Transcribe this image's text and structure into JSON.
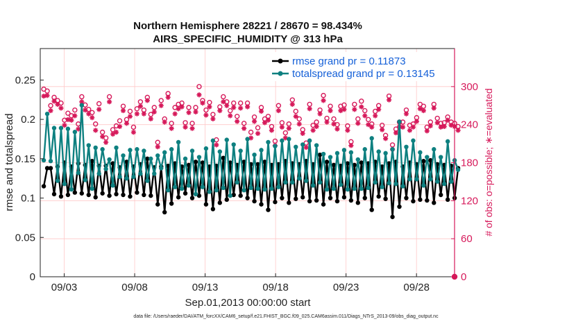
{
  "chart_data": {
    "type": "line",
    "title": "Northern Hemisphere 28221 / 28670 = 98.434%",
    "subtitle": "AIRS_SPECIFIC_HUMIDITY @ 313 hPa",
    "xlabel": "Sep.01,2013 00:00:00 start",
    "ylabel": "rmse and totalspread",
    "ylabel_right": "# of obs: o=possible; ∗=evaluated",
    "footnote": "data file: /Users/raeder/DAI/ATM_forcXX/CAM6_setup/f.e21.FHIST_BGC.f09_025.CAM6assim.011/Diags_NTrS_2013-09/obs_diag_output.nc",
    "xlim": [
      1.3,
      30.7
    ],
    "ylim": [
      0,
      0.29
    ],
    "ylim_right": [
      0,
      360
    ],
    "x_ticks": [
      3,
      8,
      13,
      18,
      23,
      28
    ],
    "x_tick_labels": [
      "09/03",
      "09/08",
      "09/13",
      "09/18",
      "09/23",
      "09/28"
    ],
    "y_ticks": [
      0,
      0.05,
      0.1,
      0.15,
      0.2,
      0.25
    ],
    "y_tick_labels": [
      "0",
      "0.05",
      "0.1",
      "0.15",
      "0.2",
      "0.25"
    ],
    "y_right_ticks": [
      0,
      60,
      120,
      180,
      240,
      300
    ],
    "y_right_tick_labels": [
      "0",
      "60",
      "120",
      "180",
      "240",
      "300"
    ],
    "grid": true,
    "legend_position": "top-right",
    "colors": {
      "rmse": "#000000",
      "spread": "#0e8080",
      "obs": "#d6195a",
      "grid": "#ffc8c8"
    },
    "series": [
      {
        "name": "rmse grand pr = 0.11873",
        "axis": "left",
        "color": "#000000",
        "values": [
          0.115,
          0.138,
          0.138,
          0.105,
          0.14,
          0.102,
          0.145,
          0.104,
          0.14,
          0.107,
          0.144,
          0.106,
          0.142,
          0.104,
          0.147,
          0.101,
          0.141,
          0.106,
          0.141,
          0.103,
          0.144,
          0.105,
          0.139,
          0.104,
          0.146,
          0.102,
          0.14,
          0.107,
          0.143,
          0.104,
          0.15,
          0.103,
          0.139,
          0.092,
          0.14,
          0.082,
          0.141,
          0.093,
          0.144,
          0.101,
          0.14,
          0.106,
          0.142,
          0.1,
          0.146,
          0.103,
          0.145,
          0.092,
          0.14,
          0.086,
          0.141,
          0.094,
          0.151,
          0.098,
          0.145,
          0.104,
          0.142,
          0.103,
          0.146,
          0.1,
          0.143,
          0.096,
          0.143,
          0.092,
          0.146,
          0.085,
          0.142,
          0.095,
          0.143,
          0.1,
          0.147,
          0.094,
          0.144,
          0.099,
          0.143,
          0.101,
          0.147,
          0.096,
          0.143,
          0.097,
          0.155,
          0.092,
          0.146,
          0.1,
          0.142,
          0.096,
          0.141,
          0.101,
          0.144,
          0.097,
          0.142,
          0.094,
          0.145,
          0.1,
          0.144,
          0.085,
          0.146,
          0.102,
          0.14,
          0.099,
          0.144,
          0.076,
          0.146,
          0.089,
          0.14,
          0.1,
          0.145,
          0.096,
          0.143,
          0.098,
          0.147,
          0.097,
          0.148,
          0.094,
          0.143,
          0.104,
          0.142,
          0.098,
          0.141,
          0.1,
          0.138
        ]
      },
      {
        "name": "totalspread grand pr = 0.13145",
        "axis": "left",
        "color": "#0e8080",
        "values": [
          0.148,
          0.207,
          0.147,
          0.189,
          0.122,
          0.189,
          0.118,
          0.188,
          0.111,
          0.184,
          0.132,
          0.218,
          0.123,
          0.167,
          0.112,
          0.164,
          0.131,
          0.162,
          0.137,
          0.149,
          0.116,
          0.164,
          0.127,
          0.154,
          0.125,
          0.161,
          0.127,
          0.162,
          0.131,
          0.16,
          0.122,
          0.15,
          0.131,
          0.154,
          0.138,
          0.158,
          0.11,
          0.162,
          0.114,
          0.171,
          0.112,
          0.15,
          0.116,
          0.16,
          0.105,
          0.152,
          0.114,
          0.163,
          0.108,
          0.173,
          0.11,
          0.159,
          0.113,
          0.174,
          0.103,
          0.168,
          0.12,
          0.16,
          0.11,
          0.175,
          0.113,
          0.155,
          0.112,
          0.161,
          0.111,
          0.171,
          0.112,
          0.166,
          0.114,
          0.173,
          0.12,
          0.175,
          0.12,
          0.165,
          0.125,
          0.168,
          0.122,
          0.173,
          0.116,
          0.167,
          0.12,
          0.156,
          0.111,
          0.152,
          0.112,
          0.157,
          0.117,
          0.161,
          0.111,
          0.158,
          0.112,
          0.149,
          0.112,
          0.162,
          0.113,
          0.176,
          0.12,
          0.159,
          0.114,
          0.157,
          0.119,
          0.162,
          0.118,
          0.197,
          0.115,
          0.165,
          0.124,
          0.173,
          0.124,
          0.158,
          0.116,
          0.152,
          0.124,
          0.162,
          0.121,
          0.152,
          0.118,
          0.172,
          0.121,
          0.148,
          0.136
        ]
      },
      {
        "name": "# possible obs",
        "axis": "right",
        "color": "#d6195a",
        "marker": "circle",
        "values": [
          296,
          293,
          270,
          283,
          278,
          274,
          247,
          258,
          254,
          263,
          241,
          284,
          271,
          264,
          259,
          241,
          273,
          228,
          219,
          284,
          232,
          238,
          246,
          269,
          248,
          261,
          236,
          265,
          276,
          263,
          283,
          256,
          267,
          212,
          278,
          249,
          289,
          242,
          267,
          272,
          274,
          243,
          267,
          242,
          267,
          300,
          278,
          263,
          275,
          256,
          216,
          268,
          284,
          276,
          262,
          274,
          253,
          274,
          242,
          274,
          228,
          252,
          235,
          267,
          249,
          253,
          237,
          214,
          270,
          243,
          227,
          241,
          279,
          261,
          249,
          232,
          211,
          272,
          239,
          244,
          263,
          286,
          250,
          269,
          249,
          240,
          269,
          271,
          238,
          213,
          272,
          249,
          277,
          262,
          248,
          241,
          261,
          270,
          239,
          223,
          285,
          208,
          233,
          244,
          244,
          263,
          239,
          241,
          251,
          272,
          269,
          236,
          244,
          272,
          250,
          242,
          243,
          252,
          244,
          242,
          237
        ]
      },
      {
        "name": "# evaluated obs",
        "axis": "right",
        "color": "#d6195a",
        "marker": "star",
        "values": [
          285,
          286,
          262,
          277,
          272,
          266,
          239,
          248,
          247,
          254,
          233,
          276,
          263,
          257,
          251,
          231,
          264,
          221,
          212,
          276,
          225,
          228,
          237,
          262,
          242,
          253,
          228,
          257,
          269,
          257,
          278,
          249,
          260,
          205,
          270,
          244,
          283,
          234,
          257,
          265,
          268,
          236,
          259,
          234,
          260,
          287,
          274,
          255,
          268,
          249,
          208,
          262,
          276,
          270,
          254,
          267,
          245,
          266,
          234,
          268,
          219,
          245,
          226,
          261,
          243,
          247,
          231,
          207,
          262,
          236,
          219,
          234,
          272,
          253,
          241,
          226,
          204,
          265,
          231,
          237,
          257,
          278,
          244,
          262,
          241,
          233,
          262,
          264,
          231,
          207,
          264,
          242,
          268,
          254,
          240,
          236,
          254,
          264,
          232,
          218,
          279,
          201,
          227,
          237,
          236,
          257,
          231,
          236,
          245,
          265,
          262,
          230,
          238,
          266,
          243,
          236,
          237,
          247,
          239,
          237,
          231
        ]
      }
    ]
  }
}
